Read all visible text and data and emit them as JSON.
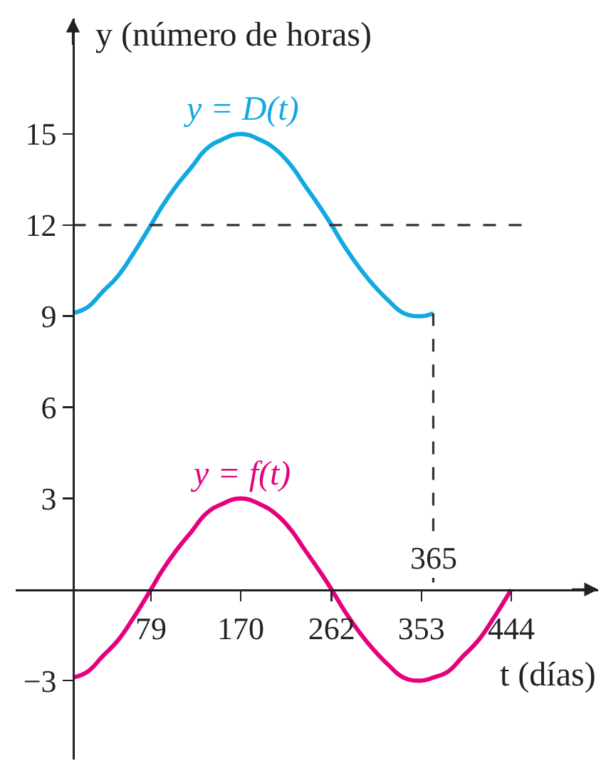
{
  "chart_data": {
    "type": "line",
    "xlabel": "t (días)",
    "ylabel": "y (número de horas)",
    "xlim": [
      -58,
      532
    ],
    "ylim": [
      -5.6,
      18.8
    ],
    "xticks": [
      79,
      170,
      262,
      353,
      444
    ],
    "yticks": [
      {
        "value": -3,
        "label": "−3"
      },
      3,
      6,
      9,
      12,
      15
    ],
    "grid": false,
    "legend": false,
    "marker": "none",
    "line_style": "solid",
    "annotations": [
      {
        "text": "365",
        "x": 365,
        "y": 0
      }
    ],
    "series": [
      {
        "name": "y = D(t)",
        "color": "#12a9e1",
        "x": [
          0,
          15,
          30,
          45,
          60,
          79,
          90,
          105,
          120,
          135,
          150,
          170,
          190,
          205,
          220,
          235,
          250,
          262,
          275,
          290,
          305,
          320,
          335,
          353,
          365
        ],
        "values": [
          9.1,
          9.3,
          9.8,
          10.3,
          11.0,
          12,
          12.6,
          13.3,
          13.9,
          14.5,
          14.8,
          15,
          14.8,
          14.5,
          14.0,
          13.3,
          12.6,
          12,
          11.3,
          10.6,
          10.0,
          9.5,
          9.1,
          9,
          9.1
        ]
      },
      {
        "name": "y = f(t)",
        "color": "#e6007e",
        "x": [
          0,
          15,
          30,
          45,
          60,
          79,
          90,
          105,
          120,
          135,
          150,
          170,
          190,
          205,
          220,
          235,
          250,
          262,
          275,
          290,
          305,
          320,
          335,
          353,
          365,
          380,
          395,
          410,
          425,
          444
        ],
        "values": [
          -2.9,
          -2.7,
          -2.2,
          -1.7,
          -1.0,
          0,
          0.6,
          1.3,
          1.9,
          2.5,
          2.8,
          3,
          2.8,
          2.5,
          2.0,
          1.3,
          0.6,
          0,
          -0.7,
          -1.4,
          -2.0,
          -2.5,
          -2.9,
          -3,
          -2.9,
          -2.7,
          -2.2,
          -1.7,
          -1.0,
          0
        ]
      },
      {
        "type": "line",
        "color": "#333333",
        "line_style": "dashed",
        "x": [
          0,
          457
        ],
        "values": [
          12,
          12
        ]
      },
      {
        "type": "line",
        "color": "#333333",
        "line_style": "dashed",
        "x": [
          365,
          365
        ],
        "values": [
          9.1,
          0
        ]
      }
    ]
  }
}
